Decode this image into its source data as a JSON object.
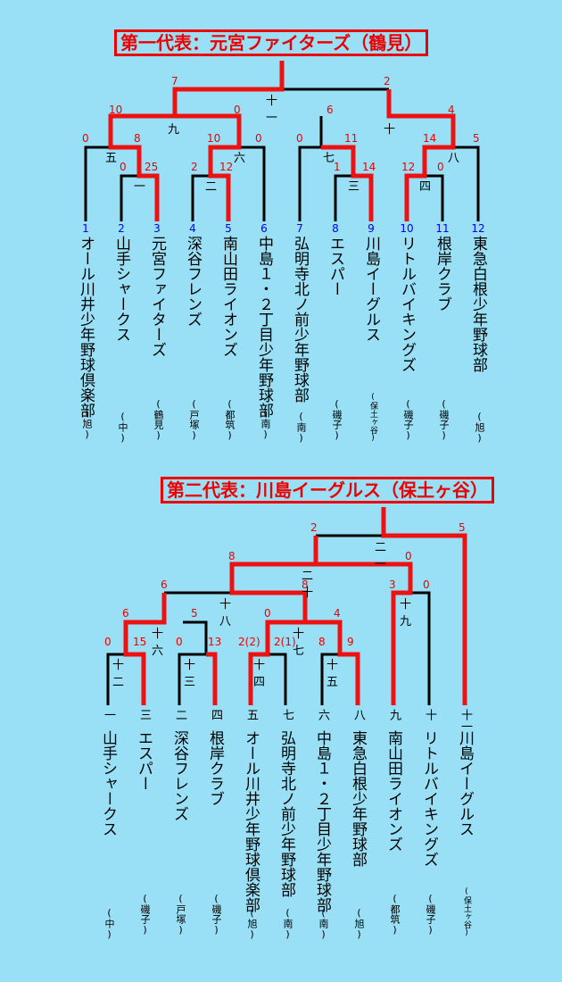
{
  "bracket1": {
    "title": "第一代表：元宮ファイターズ（鶴見）",
    "teams": [
      {
        "num": "1",
        "name": "オール川井少年野球倶楽部",
        "region": "(旭)"
      },
      {
        "num": "2",
        "name": "山手シャークス",
        "region": "(中)"
      },
      {
        "num": "3",
        "name": "元宮ファイターズ",
        "region": "(鶴見)"
      },
      {
        "num": "4",
        "name": "深谷フレンズ",
        "region": "(戸塚)"
      },
      {
        "num": "5",
        "name": "南山田ライオンズ",
        "region": "(都筑)"
      },
      {
        "num": "6",
        "name": "中島１・２丁目少年野球部",
        "region": "(南)"
      },
      {
        "num": "7",
        "name": "弘明寺北ノ前少年野球部",
        "region": "(南)"
      },
      {
        "num": "8",
        "name": "エスパー",
        "region": "(磯子)"
      },
      {
        "num": "9",
        "name": "川島イーグルス",
        "region": "(保土ヶ谷)"
      },
      {
        "num": "10",
        "name": "リトルバイキングズ",
        "region": "(磯子)"
      },
      {
        "num": "11",
        "name": "根岸クラブ",
        "region": "(磯子)"
      },
      {
        "num": "12",
        "name": "東急白根少年野球部",
        "region": "(旭)"
      }
    ],
    "games": [
      {
        "id": "一",
        "left": "0",
        "right": "25"
      },
      {
        "id": "二",
        "left": "2",
        "right": "12"
      },
      {
        "id": "三",
        "left": "1",
        "right": "14"
      },
      {
        "id": "四",
        "left": "12",
        "right": "0"
      },
      {
        "id": "五",
        "left": "0",
        "right": "8"
      },
      {
        "id": "六",
        "left": "10",
        "right": "0"
      },
      {
        "id": "七",
        "left": "0",
        "right": "11"
      },
      {
        "id": "八",
        "left": "14",
        "right": "5"
      },
      {
        "id": "九",
        "left": "10",
        "right": "0"
      },
      {
        "id": "十",
        "left": "6",
        "right": "4"
      },
      {
        "id": "十一",
        "left": "7",
        "right": "2"
      }
    ]
  },
  "bracket2": {
    "title": "第二代表：川島イーグルス（保土ヶ谷）",
    "teams": [
      {
        "seed": "一",
        "name": "山手シャークス",
        "region": "(中)"
      },
      {
        "seed": "三",
        "name": "エスパー",
        "region": "(磯子)"
      },
      {
        "seed": "二",
        "name": "深谷フレンズ",
        "region": "(戸塚)"
      },
      {
        "seed": "四",
        "name": "根岸クラブ",
        "region": "(磯子)"
      },
      {
        "seed": "五",
        "name": "オール川井少年野球倶楽部",
        "region": "(旭)"
      },
      {
        "seed": "七",
        "name": "弘明寺北ノ前少年野球部",
        "region": "(南)"
      },
      {
        "seed": "六",
        "name": "中島１・２丁目少年野球部",
        "region": "(南)"
      },
      {
        "seed": "八",
        "name": "東急白根少年野球部",
        "region": "(旭)"
      },
      {
        "seed": "九",
        "name": "南山田ライオンズ",
        "region": "(都筑)"
      },
      {
        "seed": "十",
        "name": "リトルバイキングズ",
        "region": "(磯子)"
      },
      {
        "seed": "十一",
        "name": "川島イーグルス",
        "region": "(保土ヶ谷)"
      }
    ],
    "games": [
      {
        "id": "十二",
        "left": "0",
        "right": "15"
      },
      {
        "id": "十三",
        "left": "0",
        "right": "13"
      },
      {
        "id": "十四",
        "left": "2(2)",
        "right": "2(1)"
      },
      {
        "id": "十五",
        "left": "8",
        "right": "9"
      },
      {
        "id": "十六",
        "left": "6",
        "right": "5"
      },
      {
        "id": "十七",
        "left": "0",
        "right": "4"
      },
      {
        "id": "十八",
        "left": "6",
        "right": "8"
      },
      {
        "id": "十九",
        "left": "3",
        "right": "0"
      },
      {
        "id": "二十",
        "left": "8",
        "right": "0"
      },
      {
        "id": "二一",
        "left": "2",
        "right": "5"
      }
    ]
  }
}
